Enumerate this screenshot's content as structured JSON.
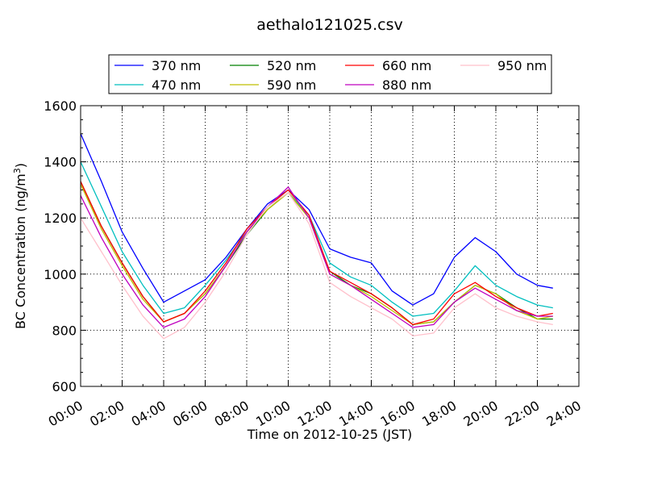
{
  "chart_data": {
    "type": "line",
    "title": "aethalo121025.csv",
    "xlabel": "Time on 2012-10-25 (JST)",
    "ylabel": "BC Concentration (ng/m3)",
    "ylabel_parts": [
      "BC Concentration (ng/m",
      "3",
      ")"
    ],
    "xlim": [
      "00:00",
      "24:00"
    ],
    "ylim": [
      600,
      1600
    ],
    "x_ticks": [
      "00:00",
      "02:00",
      "04:00",
      "06:00",
      "08:00",
      "10:00",
      "12:00",
      "14:00",
      "16:00",
      "18:00",
      "20:00",
      "22:00",
      "24:00"
    ],
    "y_ticks": [
      600,
      800,
      1000,
      1200,
      1400,
      1600
    ],
    "grid": true,
    "legend_position": "top",
    "x": [
      "00:00",
      "01:00",
      "02:00",
      "03:00",
      "04:00",
      "05:00",
      "06:00",
      "07:00",
      "08:00",
      "09:00",
      "10:00",
      "11:00",
      "12:00",
      "13:00",
      "14:00",
      "15:00",
      "16:00",
      "17:00",
      "18:00",
      "19:00",
      "20:00",
      "21:00",
      "22:00",
      "22:45"
    ],
    "series": [
      {
        "name": "370 nm",
        "color": "#0000ff",
        "values": [
          1500,
          1330,
          1150,
          1020,
          900,
          940,
          980,
          1060,
          1160,
          1250,
          1300,
          1230,
          1090,
          1060,
          1040,
          940,
          890,
          930,
          1060,
          1130,
          1080,
          1000,
          960,
          950
        ]
      },
      {
        "name": "470 nm",
        "color": "#00bfbf",
        "values": [
          1400,
          1240,
          1080,
          960,
          860,
          880,
          960,
          1050,
          1150,
          1240,
          1290,
          1210,
          1040,
          990,
          960,
          900,
          850,
          860,
          940,
          1030,
          960,
          920,
          890,
          880
        ]
      },
      {
        "name": "520 nm",
        "color": "#008000",
        "values": [
          1330,
          1170,
          1040,
          920,
          830,
          860,
          930,
          1030,
          1140,
          1230,
          1290,
          1200,
          1010,
          960,
          930,
          880,
          820,
          830,
          900,
          960,
          930,
          880,
          840,
          840
        ]
      },
      {
        "name": "590 nm",
        "color": "#bfbf00",
        "values": [
          1320,
          1160,
          1030,
          910,
          830,
          860,
          930,
          1030,
          1150,
          1230,
          1290,
          1200,
          1000,
          960,
          920,
          870,
          820,
          830,
          900,
          960,
          930,
          870,
          840,
          850
        ]
      },
      {
        "name": "660 nm",
        "color": "#ff0000",
        "values": [
          1330,
          1170,
          1040,
          920,
          830,
          860,
          940,
          1040,
          1160,
          1240,
          1300,
          1210,
          1010,
          970,
          930,
          880,
          820,
          840,
          930,
          970,
          920,
          880,
          850,
          860
        ]
      },
      {
        "name": "880 nm",
        "color": "#bf00bf",
        "values": [
          1280,
          1130,
          1000,
          890,
          810,
          840,
          920,
          1030,
          1150,
          1240,
          1310,
          1200,
          1000,
          960,
          910,
          860,
          810,
          820,
          900,
          950,
          910,
          870,
          850,
          850
        ]
      },
      {
        "name": "950 nm",
        "color": "#ffc0cb",
        "values": [
          1200,
          1080,
          960,
          850,
          770,
          810,
          900,
          1010,
          1140,
          1240,
          1290,
          1180,
          970,
          920,
          880,
          840,
          780,
          790,
          880,
          930,
          880,
          850,
          830,
          820
        ]
      }
    ]
  }
}
